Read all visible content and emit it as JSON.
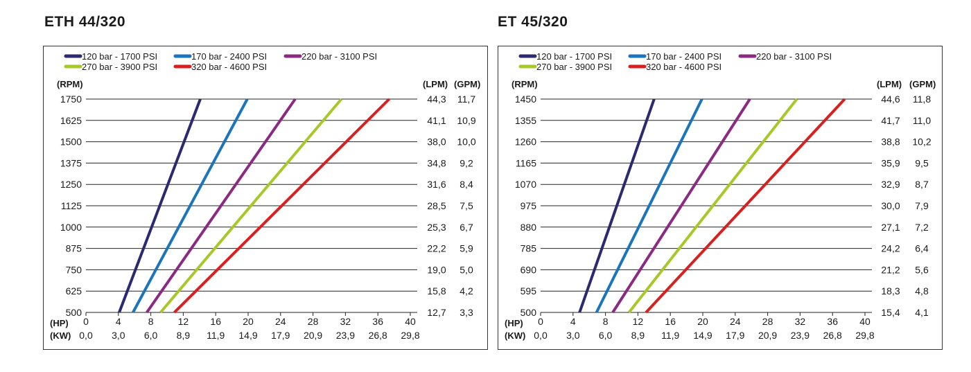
{
  "chart_data": [
    {
      "type": "line",
      "title": "ETH 44/320",
      "legend": {
        "placement": "top",
        "entries": [
          "120 bar - 1700 PSI",
          "170 bar - 2400 PSI",
          "220 bar - 3100 PSI",
          "270 bar - 3900 PSI",
          "320 bar - 4600 PSI"
        ]
      },
      "grid": true,
      "ylabel": "(RPM)",
      "ylim": [
        500,
        1750
      ],
      "y_ticks": [
        "1750",
        "1625",
        "1500",
        "1375",
        "1250",
        "1125",
        "1000",
        "875",
        "750",
        "625",
        "500"
      ],
      "right_labels": [
        "(LPM)",
        "(GPM)"
      ],
      "lpm_ticks": [
        "44,3",
        "41,1",
        "38,0",
        "34,8",
        "31,6",
        "28,5",
        "25,3",
        "22,2",
        "19,0",
        "15,8",
        "12,7"
      ],
      "gpm_ticks": [
        "11,7",
        "10,9",
        "10,0",
        "9,2",
        "8,4",
        "7,5",
        "6,7",
        "5,9",
        "5,0",
        "4,2",
        "3,3"
      ],
      "xlabel": "(HP)",
      "xlabel2": "(KW)",
      "xlim": [
        0,
        40
      ],
      "x_ticks": [
        "0",
        "4",
        "8",
        "12",
        "16",
        "20",
        "24",
        "28",
        "32",
        "36",
        "40"
      ],
      "kw_ticks": [
        "0,0",
        "3,0",
        "6,0",
        "8,9",
        "11,9",
        "14,9",
        "17,9",
        "20,9",
        "23,9",
        "26,8",
        "29,8"
      ],
      "series": [
        {
          "name": "120 bar - 1700 PSI",
          "color": "#2b2a6e",
          "points": [
            [
              4.1,
              500
            ],
            [
              14.1,
              1750
            ]
          ]
        },
        {
          "name": "170 bar - 2400 PSI",
          "color": "#1b75bc",
          "points": [
            [
              5.8,
              500
            ],
            [
              19.9,
              1750
            ]
          ]
        },
        {
          "name": "220 bar - 3100 PSI",
          "color": "#8b2a82",
          "points": [
            [
              7.5,
              500
            ],
            [
              25.8,
              1750
            ]
          ]
        },
        {
          "name": "270 bar - 3900 PSI",
          "color": "#a8c82a",
          "points": [
            [
              9.2,
              500
            ],
            [
              31.5,
              1750
            ]
          ]
        },
        {
          "name": "320 bar - 4600 PSI",
          "color": "#d7201f",
          "points": [
            [
              10.9,
              500
            ],
            [
              37.4,
              1750
            ]
          ]
        }
      ]
    },
    {
      "type": "line",
      "title": "ET 45/320",
      "legend": {
        "placement": "top",
        "entries": [
          "120 bar - 1700 PSI",
          "170 bar - 2400 PSI",
          "220 bar - 3100 PSI",
          "270 bar - 3900 PSI",
          "320 bar - 4600 PSI"
        ]
      },
      "grid": true,
      "ylabel": "(RPM)",
      "ylim": [
        500,
        1450
      ],
      "y_ticks": [
        "1450",
        "1355",
        "1260",
        "1165",
        "1070",
        "975",
        "880",
        "785",
        "690",
        "595",
        "500"
      ],
      "right_labels": [
        "(LPM)",
        "(GPM)"
      ],
      "lpm_ticks": [
        "44,6",
        "41,7",
        "38,8",
        "35,9",
        "32,9",
        "30,0",
        "27,1",
        "24,2",
        "21,2",
        "18,3",
        "15,4"
      ],
      "gpm_ticks": [
        "11,8",
        "11,0",
        "10,2",
        "9,5",
        "8,7",
        "7,9",
        "7,2",
        "6,4",
        "5,6",
        "4,8",
        "4,1"
      ],
      "xlabel": "(HP)",
      "xlabel2": "(KW)",
      "xlim": [
        0,
        40
      ],
      "x_ticks": [
        "0",
        "4",
        "8",
        "12",
        "16",
        "20",
        "24",
        "28",
        "32",
        "36",
        "40"
      ],
      "kw_ticks": [
        "0,0",
        "3,0",
        "6,0",
        "8,9",
        "11,9",
        "14,9",
        "17,9",
        "20,9",
        "23,9",
        "26,8",
        "29,8"
      ],
      "series": [
        {
          "name": "120 bar - 1700 PSI",
          "color": "#2b2a6e",
          "points": [
            [
              4.8,
              500
            ],
            [
              14.0,
              1450
            ]
          ]
        },
        {
          "name": "170 bar - 2400 PSI",
          "color": "#1b75bc",
          "points": [
            [
              6.9,
              500
            ],
            [
              19.9,
              1450
            ]
          ]
        },
        {
          "name": "220 bar - 3100 PSI",
          "color": "#8b2a82",
          "points": [
            [
              8.9,
              500
            ],
            [
              25.8,
              1450
            ]
          ]
        },
        {
          "name": "270 bar - 3900 PSI",
          "color": "#a8c82a",
          "points": [
            [
              10.9,
              500
            ],
            [
              31.6,
              1450
            ]
          ]
        },
        {
          "name": "320 bar - 4600 PSI",
          "color": "#d7201f",
          "points": [
            [
              13.0,
              500
            ],
            [
              37.5,
              1450
            ]
          ]
        }
      ]
    }
  ]
}
